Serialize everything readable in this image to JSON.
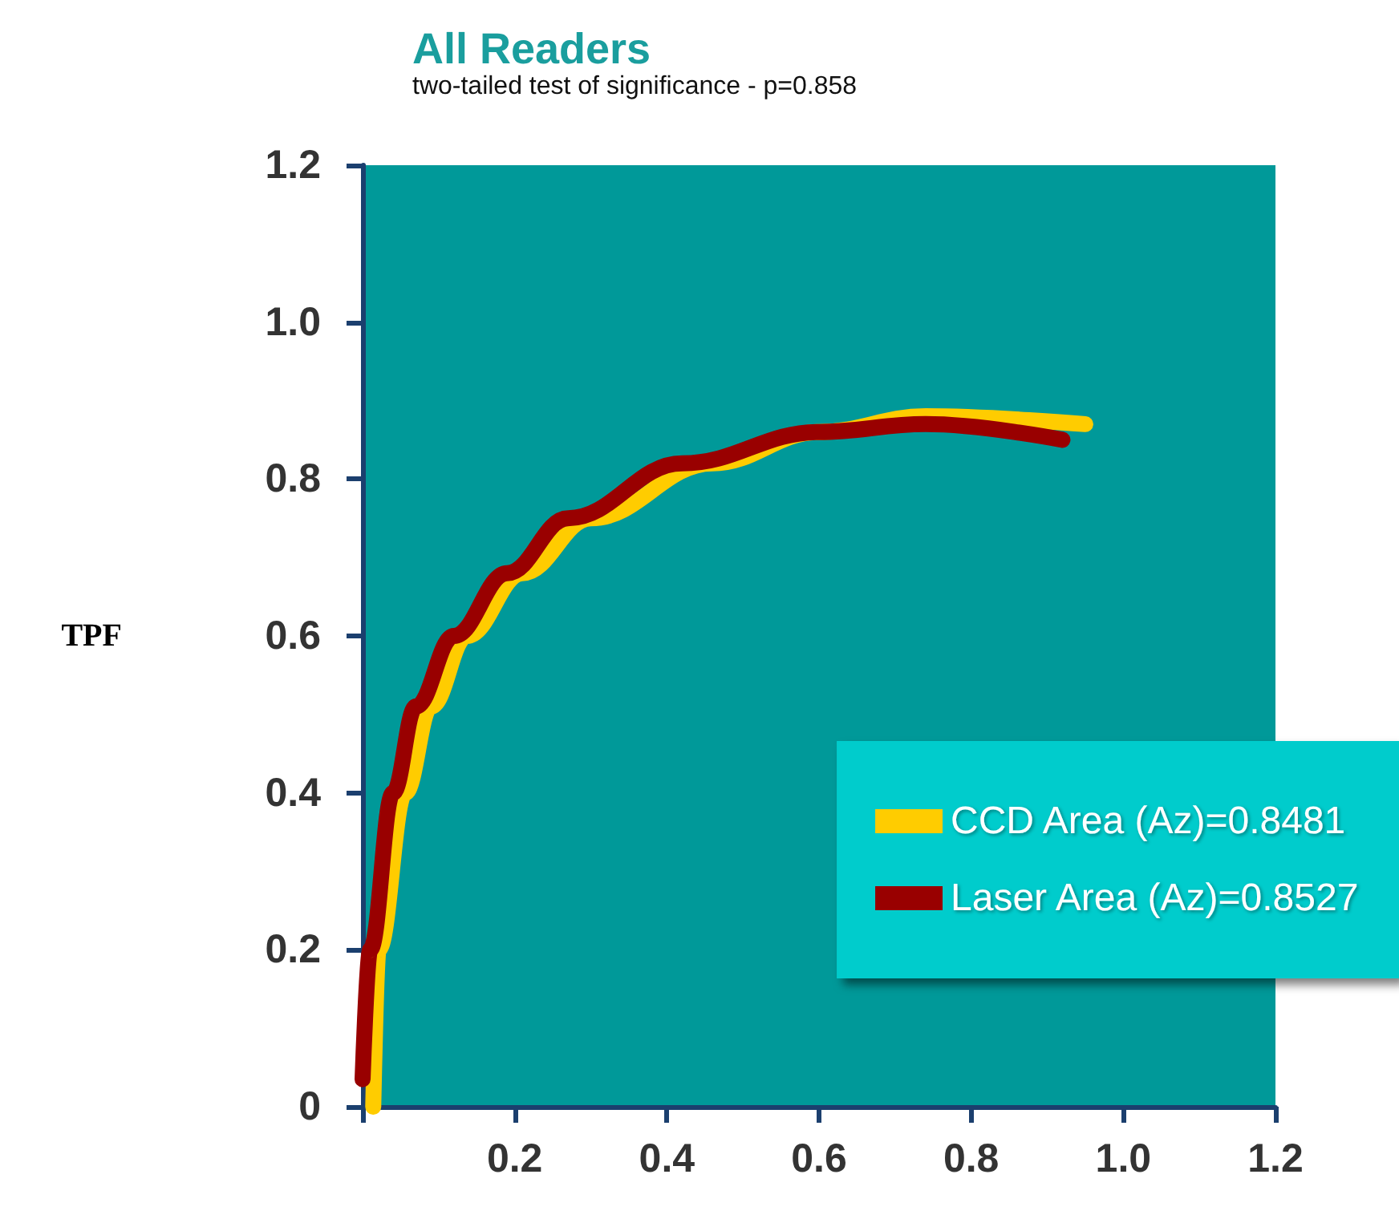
{
  "chart_data": {
    "type": "line",
    "title": "All Readers",
    "subtitle": "two-tailed test of significance - p=0.858",
    "ylabel": "TPF",
    "xlim": [
      0,
      1.2
    ],
    "ylim": [
      0,
      1.2
    ],
    "xticks": [
      {
        "value": 0,
        "label": null
      },
      0.2,
      0.4,
      0.6,
      0.8,
      {
        "value": 1,
        "label": "1.0"
      },
      1.2
    ],
    "yticks": [
      0,
      0.2,
      0.4,
      0.6,
      0.8,
      {
        "value": 1,
        "label": "1.0"
      },
      1.2
    ],
    "series": [
      {
        "name": "CCD Area (Az)=0.8481",
        "color": "#ffcc00",
        "x": [
          0.014,
          0.021,
          0.056,
          0.09,
          0.137,
          0.21,
          0.3,
          0.46,
          0.6,
          0.74,
          0.95
        ],
        "values": [
          0,
          0.2,
          0.4,
          0.51,
          0.6,
          0.68,
          0.75,
          0.82,
          0.86,
          0.88,
          0.87
        ]
      },
      {
        "name": "Laser Area (Az)=0.8527",
        "color": "#990000",
        "x": [
          0.0,
          0.01,
          0.04,
          0.07,
          0.12,
          0.19,
          0.27,
          0.42,
          0.6,
          0.74,
          0.92
        ],
        "values": [
          0.035,
          0.2,
          0.4,
          0.51,
          0.6,
          0.68,
          0.75,
          0.82,
          0.86,
          0.87,
          0.85
        ]
      }
    ],
    "legend": "bottom right",
    "grid": false,
    "marker": "none",
    "line_style": "solid"
  }
}
